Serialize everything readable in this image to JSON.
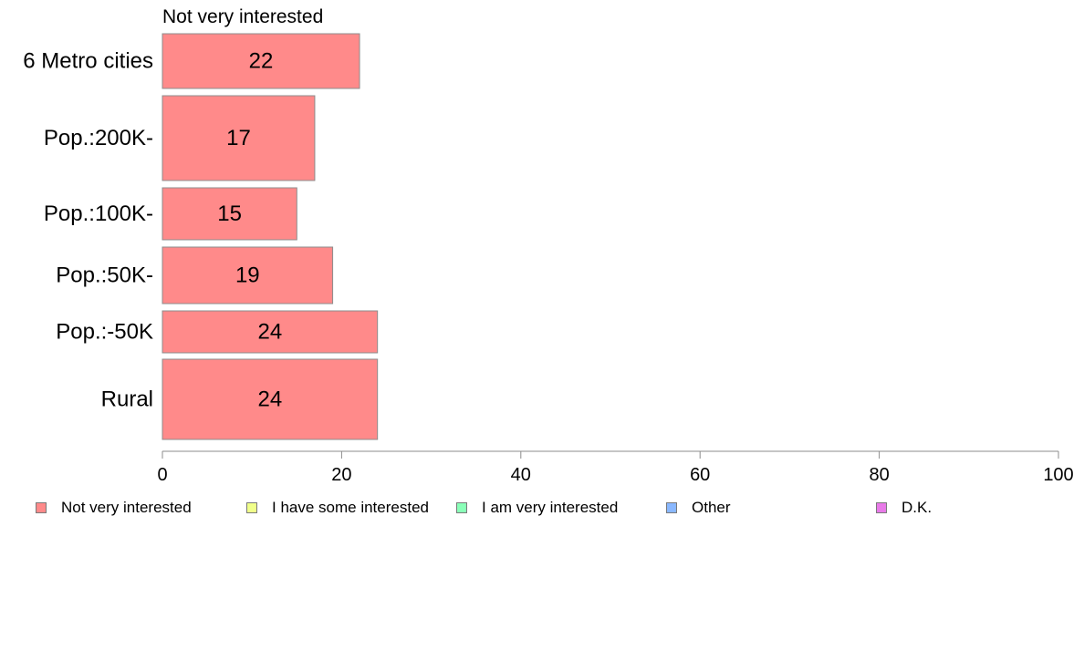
{
  "chart_data": {
    "type": "bar",
    "orientation": "horizontal",
    "title": "Not very interested",
    "categories": [
      "6 Metro cities",
      "Pop.:200K-",
      "Pop.:100K-",
      "Pop.:50K-",
      "Pop.:-50K",
      "Rural"
    ],
    "series": [
      {
        "name": "Not very interested",
        "values": [
          22,
          17,
          15,
          19,
          24,
          24
        ],
        "color": "#ff8a8a"
      }
    ],
    "data_labels": [
      "22",
      "17",
      "15",
      "19",
      "24",
      "24"
    ],
    "xlim": [
      0,
      100
    ],
    "xticks": [
      0,
      20,
      40,
      60,
      80,
      100
    ],
    "xtick_labels": [
      "0",
      "20",
      "40",
      "60",
      "80",
      "100"
    ],
    "grid": false,
    "legend_placement": "bottom",
    "legend": [
      {
        "label": "Not very interested",
        "color": "#ff8a8a"
      },
      {
        "label": "I have some interested",
        "color": "#f0ff8a"
      },
      {
        "label": "I am very interested",
        "color": "#8affb8"
      },
      {
        "label": "Other",
        "color": "#8ab8ff"
      },
      {
        "label": "D.K.",
        "color": "#e87ae8"
      }
    ]
  }
}
